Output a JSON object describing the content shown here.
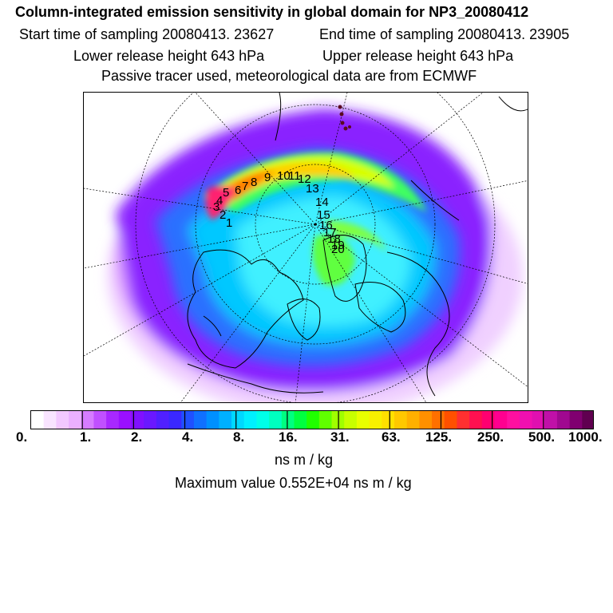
{
  "header": {
    "title": "Column-integrated emission sensitivity in global domain for NP3_20080412",
    "start_time": "Start time of sampling 20080413. 23627",
    "end_time": "End time of sampling 20080413. 23905",
    "lower_height": "Lower release height  643 hPa",
    "upper_height": "Upper release height  643 hPa",
    "tracer_info": "Passive tracer used, meteorological data are from ECMWF"
  },
  "map": {
    "release_points": [
      "1",
      "2",
      "3",
      "4",
      "5",
      "6",
      "7",
      "8",
      "9",
      "10",
      "11",
      "12",
      "13",
      "14",
      "15",
      "16",
      "17",
      "18",
      "19",
      "20"
    ]
  },
  "colorbar": {
    "ticks": [
      "0.",
      "1.",
      "2.",
      "4.",
      "8.",
      "16.",
      "31.",
      "63.",
      "125.",
      "250.",
      "500.",
      "1000."
    ],
    "colors": [
      "#ffffff",
      "#f9e4ff",
      "#f3c8ff",
      "#ebb0ff",
      "#d67cff",
      "#c050ff",
      "#a828ff",
      "#9a10ff",
      "#8010ff",
      "#6a18ff",
      "#5020ff",
      "#3a28ff",
      "#2050ff",
      "#1070ff",
      "#0090ff",
      "#00b0ff",
      "#00d8ff",
      "#00f0ff",
      "#00ffe8",
      "#00ffc0",
      "#00ff80",
      "#00ff40",
      "#20ff00",
      "#60ff00",
      "#a0ff00",
      "#c8ff00",
      "#e8ff00",
      "#f8f000",
      "#ffe000",
      "#ffc800",
      "#ffb000",
      "#ff9000",
      "#ff7000",
      "#ff5000",
      "#ff3030",
      "#ff1050",
      "#ff0070",
      "#ff0090",
      "#ff10a0",
      "#f010b0",
      "#e010b0",
      "#c010a8",
      "#a00890",
      "#800070",
      "#600050"
    ]
  },
  "units": "ns m / kg",
  "maximum": "Maximum value  0.552E+04 ns m / kg"
}
